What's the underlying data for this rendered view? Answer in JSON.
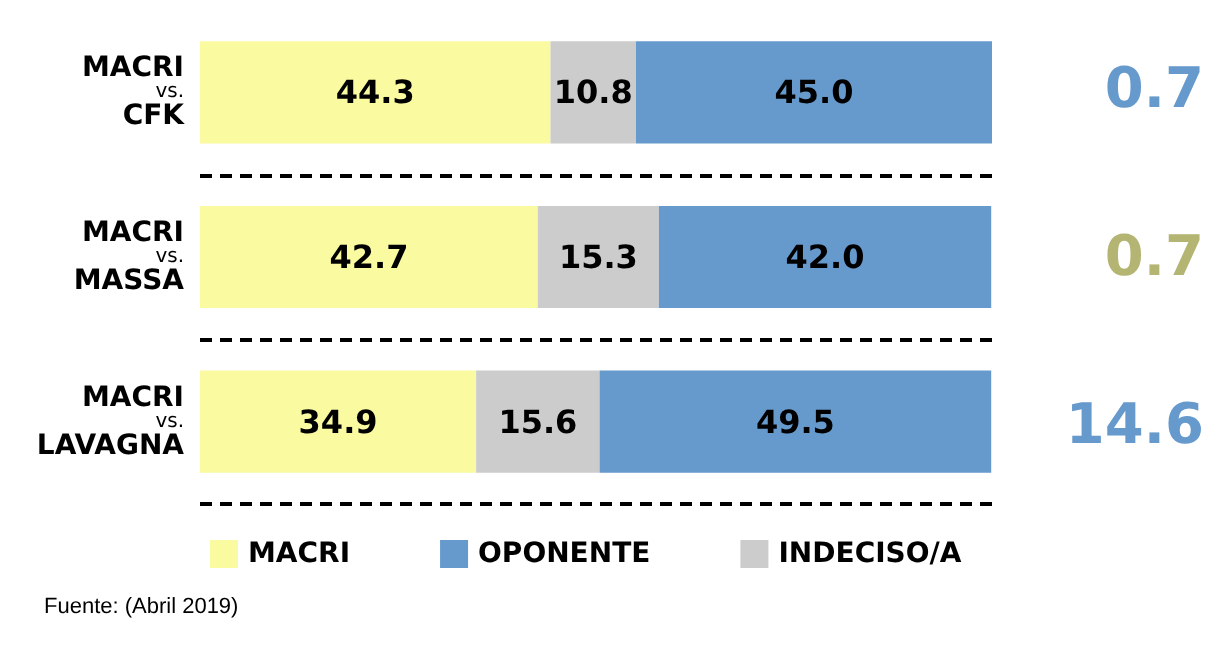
{
  "chart_data": {
    "type": "bar",
    "orientation": "horizontal",
    "stacked": true,
    "categories": [
      "MACRI\nvs.\nCFK",
      "MACRI\nvs.\nMASSA",
      "MACRI\nvs.\nLAVAGNA"
    ],
    "series": [
      {
        "name": "MACRI",
        "color": "#fafaa0",
        "values": [
          44.3,
          42.7,
          34.9
        ],
        "value_labels": [
          "44.3",
          "42.7",
          "34.9"
        ]
      },
      {
        "name": "INDECISO/A",
        "color": "#cccccc",
        "values": [
          10.8,
          15.3,
          15.6
        ],
        "value_labels": [
          "10.8",
          "15.3",
          "15.6"
        ]
      },
      {
        "name": "OPONENTE",
        "color": "#6699cc",
        "values": [
          45.0,
          42.0,
          49.5
        ],
        "value_labels": [
          "45.0",
          "42.0",
          "49.5"
        ]
      }
    ],
    "xlim": [
      0,
      100.1
    ],
    "tick_labels": "y",
    "grid": "y",
    "legend": "bottom left",
    "annotations": [
      "0.7",
      "0.7",
      "14.6",
      "Fuente: (Abril 2019)"
    ]
  }
}
